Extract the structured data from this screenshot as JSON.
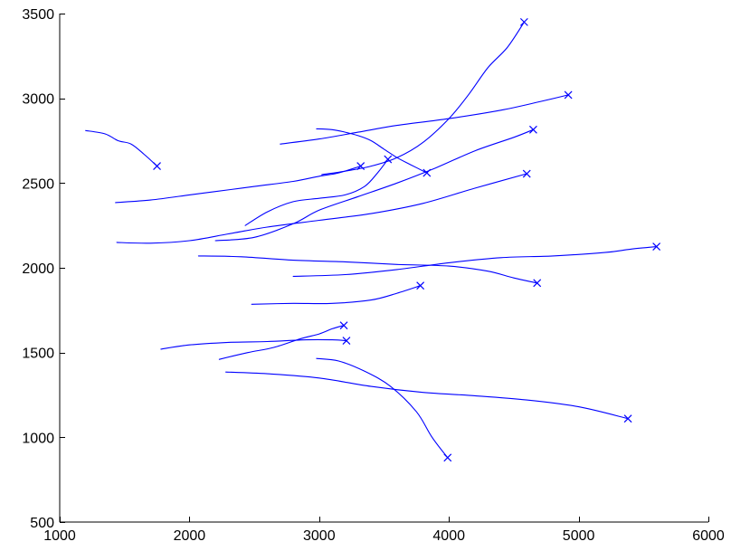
{
  "chart_data": {
    "type": "line",
    "title": "",
    "xlabel": "",
    "ylabel": "",
    "xlim": [
      1000,
      6000
    ],
    "ylim": [
      500,
      3500
    ],
    "x_ticks": [
      1000,
      2000,
      3000,
      4000,
      5000,
      6000
    ],
    "y_ticks": [
      500,
      1000,
      1500,
      2000,
      2500,
      3000,
      3500
    ],
    "x_tick_labels": [
      "1000",
      "2000",
      "3000",
      "4000",
      "5000",
      "6000"
    ],
    "y_tick_labels": [
      "500",
      "1000",
      "1500",
      "2000",
      "2500",
      "3000",
      "3500"
    ],
    "grid": false,
    "box": false,
    "color": "#0000ff",
    "end_marker": "x",
    "series": [
      {
        "x": [
          1200,
          1350,
          1450,
          1550,
          1650,
          1750
        ],
        "y": [
          2810,
          2790,
          2750,
          2730,
          2670,
          2600
        ]
      },
      {
        "x": [
          1430,
          1700,
          2000,
          2200,
          2500,
          2800,
          3000,
          3150,
          3320
        ],
        "y": [
          2385,
          2400,
          2430,
          2450,
          2480,
          2510,
          2540,
          2560,
          2600
        ]
      },
      {
        "x": [
          2430,
          2600,
          2800,
          3000,
          3200,
          3350,
          3450,
          3530
        ],
        "y": [
          2250,
          2330,
          2390,
          2410,
          2430,
          2480,
          2560,
          2640
        ]
      },
      {
        "x": [
          2700,
          3000,
          3300,
          3600,
          4000,
          4400,
          4700,
          4920
        ],
        "y": [
          2730,
          2760,
          2800,
          2840,
          2880,
          2930,
          2980,
          3020
        ]
      },
      {
        "x": [
          2980,
          3100,
          3200,
          3300,
          3400,
          3500,
          3600,
          3700,
          3830
        ],
        "y": [
          2820,
          2815,
          2800,
          2780,
          2750,
          2700,
          2650,
          2610,
          2560
        ]
      },
      {
        "x": [
          3020,
          3200,
          3400,
          3600,
          3800,
          4000,
          4150,
          4300,
          4450,
          4580
        ],
        "y": [
          2550,
          2570,
          2600,
          2650,
          2740,
          2880,
          3020,
          3180,
          3300,
          3450
        ]
      },
      {
        "x": [
          2200,
          2500,
          2800,
          3000,
          3300,
          3600,
          3900,
          4200,
          4500,
          4650
        ],
        "y": [
          2160,
          2180,
          2260,
          2340,
          2420,
          2500,
          2590,
          2690,
          2770,
          2815
        ]
      },
      {
        "x": [
          1440,
          1700,
          2000,
          2300,
          2600,
          3000,
          3400,
          3800,
          4200,
          4600
        ],
        "y": [
          2150,
          2145,
          2160,
          2200,
          2240,
          2280,
          2320,
          2380,
          2470,
          2555
        ]
      },
      {
        "x": [
          2070,
          2400,
          2800,
          3200,
          3600,
          4000,
          4300,
          4500,
          4680
        ],
        "y": [
          2070,
          2065,
          2045,
          2035,
          2020,
          2010,
          1980,
          1940,
          1910
        ]
      },
      {
        "x": [
          2800,
          3200,
          3600,
          4000,
          4400,
          4800,
          5200,
          5400,
          5600
        ],
        "y": [
          1950,
          1960,
          1990,
          2030,
          2060,
          2070,
          2090,
          2110,
          2125
        ]
      },
      {
        "x": [
          2480,
          2800,
          3100,
          3400,
          3600,
          3780
        ],
        "y": [
          1785,
          1790,
          1790,
          1810,
          1850,
          1895
        ]
      },
      {
        "x": [
          2230,
          2450,
          2650,
          2850,
          3000,
          3100,
          3190
        ],
        "y": [
          1460,
          1500,
          1530,
          1580,
          1610,
          1640,
          1660
        ]
      },
      {
        "x": [
          1780,
          2000,
          2300,
          2600,
          2900,
          3100,
          3210
        ],
        "y": [
          1520,
          1545,
          1560,
          1565,
          1575,
          1575,
          1570
        ]
      },
      {
        "x": [
          2280,
          2600,
          3000,
          3400,
          3800,
          4200,
          4600,
          5000,
          5380
        ],
        "y": [
          1385,
          1375,
          1350,
          1300,
          1265,
          1245,
          1220,
          1180,
          1110
        ]
      },
      {
        "x": [
          2980,
          3150,
          3350,
          3550,
          3750,
          3870,
          3990
        ],
        "y": [
          1465,
          1450,
          1390,
          1300,
          1150,
          1000,
          880
        ]
      }
    ]
  }
}
